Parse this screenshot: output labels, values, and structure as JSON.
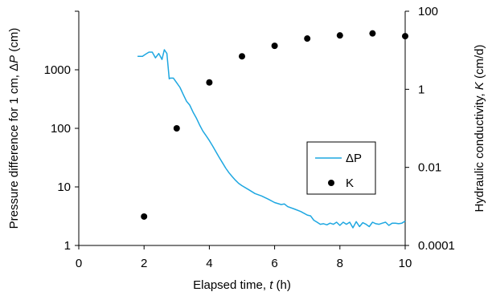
{
  "chart_data": {
    "type": "line",
    "x_axis": {
      "label": "Elapsed time, t (h)",
      "label_prefix": "Elapsed time, ",
      "label_var": "t",
      "label_suffix": " (h)",
      "range": [
        0,
        10
      ],
      "ticks": [
        0,
        2,
        4,
        6,
        8,
        10
      ],
      "tick_labels": [
        "0",
        "2",
        "4",
        "6",
        "8",
        "10"
      ]
    },
    "y_axis_left": {
      "label": "Pressure difference for 1 cm, ΔP (cm)",
      "label_prefix": "Pressure difference for 1 cm, Δ",
      "label_var": "P",
      "label_suffix": " (cm)",
      "scale": "log",
      "range": [
        1,
        10000
      ],
      "ticks": [
        1,
        10,
        100,
        1000
      ],
      "tick_labels": [
        "1",
        "10",
        "100",
        "1000"
      ]
    },
    "y_axis_right": {
      "label": "Hydraulic conductivity, K (cm/d)",
      "label_prefix": "Hydraulic conductivity, ",
      "label_var": "K",
      "label_suffix": " (cm/d)",
      "scale": "log",
      "range": [
        0.0001,
        100
      ],
      "ticks": [
        0.0001,
        0.01,
        1,
        100
      ],
      "tick_labels": [
        "0.0001",
        "0.01",
        "1",
        "100"
      ]
    },
    "grid": false,
    "legend_position": "right",
    "series": [
      {
        "name": "ΔP",
        "type": "line",
        "axis": "left",
        "color": "#1ea7e1",
        "x": [
          1.8,
          1.95,
          2.05,
          2.15,
          2.25,
          2.35,
          2.45,
          2.55,
          2.62,
          2.7,
          2.77,
          2.8,
          2.9,
          3.0,
          3.1,
          3.2,
          3.3,
          3.4,
          3.5,
          3.6,
          3.7,
          3.8,
          3.9,
          4.0,
          4.1,
          4.2,
          4.3,
          4.4,
          4.5,
          4.6,
          4.7,
          4.8,
          4.9,
          5.0,
          5.2,
          5.4,
          5.6,
          5.8,
          6.0,
          6.2,
          6.3,
          6.4,
          6.6,
          6.8,
          7.0,
          7.1,
          7.2,
          7.3,
          7.4,
          7.5,
          7.6,
          7.7,
          7.8,
          7.9,
          8.0,
          8.1,
          8.2,
          8.3,
          8.4,
          8.5,
          8.6,
          8.7,
          8.8,
          8.9,
          9.0,
          9.1,
          9.2,
          9.3,
          9.4,
          9.5,
          9.6,
          9.7,
          9.8,
          9.9,
          10.0
        ],
        "y": [
          1700,
          1700,
          1850,
          2000,
          2000,
          1600,
          1900,
          1500,
          2200,
          1900,
          700,
          720,
          720,
          600,
          500,
          380,
          290,
          250,
          190,
          150,
          115,
          90,
          75,
          62,
          50,
          40,
          32,
          26,
          21,
          17.5,
          15,
          13,
          11.5,
          10.5,
          9,
          7.7,
          7,
          6.2,
          5.4,
          5,
          5.1,
          4.6,
          4.2,
          3.8,
          3.3,
          3.2,
          2.7,
          2.5,
          2.3,
          2.35,
          2.25,
          2.4,
          2.3,
          2.5,
          2.2,
          2.5,
          2.3,
          2.5,
          2.0,
          2.55,
          2.1,
          2.45,
          2.3,
          2.1,
          2.5,
          2.35,
          2.3,
          2.4,
          2.5,
          2.2,
          2.4,
          2.4,
          2.35,
          2.4,
          2.6
        ]
      },
      {
        "name": "K",
        "type": "scatter",
        "axis": "right",
        "color": "#000000",
        "x": [
          2,
          3,
          4,
          5,
          6,
          7,
          8,
          9,
          10
        ],
        "y": [
          0.00055,
          0.1,
          1.5,
          7,
          13,
          20,
          24,
          27,
          23
        ]
      }
    ]
  }
}
